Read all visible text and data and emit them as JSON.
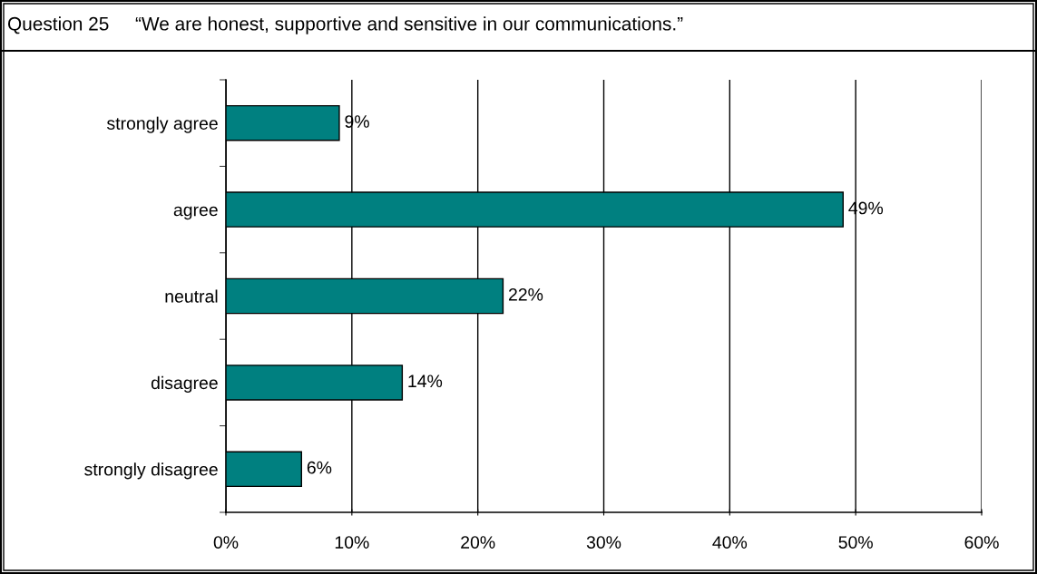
{
  "chart_data": {
    "type": "bar",
    "orientation": "horizontal",
    "title": "Question 25",
    "subtitle": "“We are honest, supportive and sensitive in our communications.”",
    "categories": [
      "strongly agree",
      "agree",
      "neutral",
      "disagree",
      "strongly disagree"
    ],
    "values": [
      9,
      49,
      22,
      14,
      6
    ],
    "color": "#008080",
    "data_labels": true,
    "value_labels": [
      "9%",
      "49%",
      "22%",
      "14%",
      "6%"
    ],
    "xlim": [
      0,
      60
    ],
    "xticks": [
      {
        "value": 0,
        "label": "0%"
      },
      {
        "value": 10,
        "label": "10%"
      },
      {
        "value": 20,
        "label": "20%"
      },
      {
        "value": 30,
        "label": "30%"
      },
      {
        "value": 40,
        "label": "40%"
      },
      {
        "value": 50,
        "label": "50%"
      },
      {
        "value": 60,
        "label": "60%"
      }
    ],
    "grid": "x",
    "legend": false
  }
}
